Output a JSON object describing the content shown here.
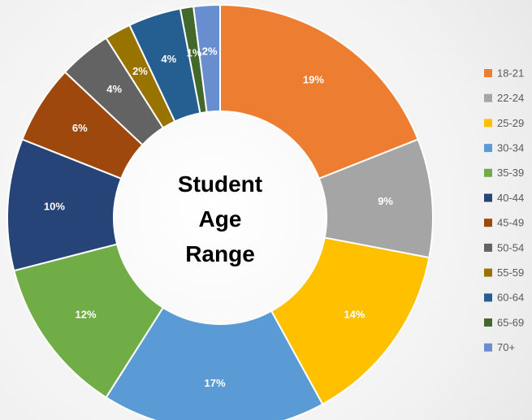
{
  "chart_data": {
    "type": "donut",
    "title": "Student Age Range",
    "categories": [
      "18-21",
      "22-24",
      "25-29",
      "30-34",
      "35-39",
      "40-44",
      "45-49",
      "50-54",
      "55-59",
      "60-64",
      "65-69",
      "70+"
    ],
    "values": [
      19,
      9,
      14,
      17,
      12,
      10,
      6,
      4,
      2,
      4,
      1,
      2
    ],
    "value_labels": [
      "19%",
      "9%",
      "14%",
      "17%",
      "12%",
      "10%",
      "6%",
      "4%",
      "2%",
      "4%",
      "1%",
      "2%"
    ],
    "colors": [
      "#ed7d31",
      "#a5a5a5",
      "#ffc000",
      "#5b9bd5",
      "#70ad47",
      "#264478",
      "#9e480e",
      "#636363",
      "#997300",
      "#255e91",
      "#43682b",
      "#698ed0"
    ],
    "legend": "right"
  }
}
